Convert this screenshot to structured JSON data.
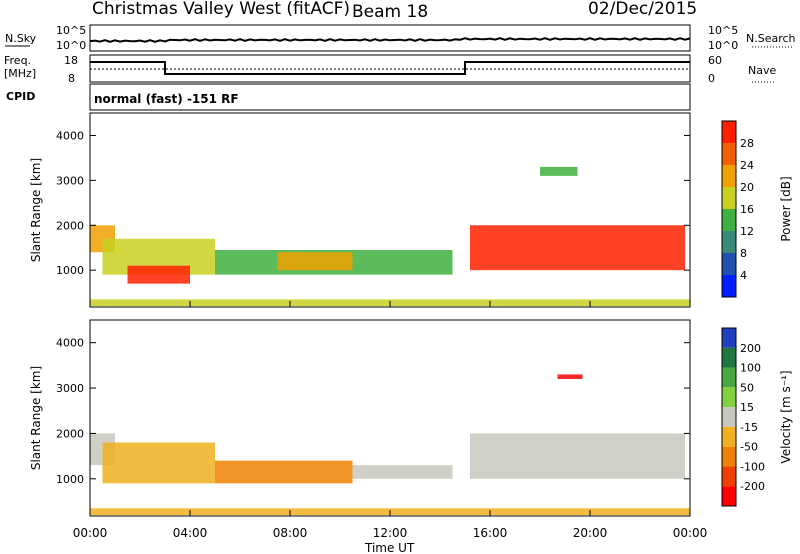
{
  "header": {
    "title": "Christmas Valley West (fitACF)",
    "beam": "Beam 18",
    "date": "02/Dec/2015"
  },
  "aux": {
    "nsky_label": "N.Sky",
    "nsearch_label": "N.Search",
    "noise_tick_top": "10^5",
    "noise_tick_bottom": "10^0",
    "freq_label_line1": "Freq.",
    "freq_label_line2": "[MHz]",
    "freq_ticks": [
      "18",
      "8"
    ],
    "nave_label": "Nave",
    "nave_ticks": [
      "60",
      "0"
    ],
    "cpid_label": "CPID",
    "cpid_text": "normal (fast) -151 RF"
  },
  "colors": {
    "power": [
      "#0020ff",
      "#2050b0",
      "#3a8a7a",
      "#40b040",
      "#c8d020",
      "#f0a000",
      "#f06000",
      "#ff2000"
    ],
    "velocity": [
      "#2040c0",
      "#207840",
      "#48a840",
      "#80d040",
      "#c8c8c0",
      "#f0b020",
      "#f08000",
      "#f04000",
      "#ff0000"
    ]
  },
  "chart_data": [
    {
      "type": "heatmap",
      "name_hint": "power-panel",
      "ylabel": "Slant Range [km]",
      "xlabel": "Time UT",
      "x_ticks": [
        "00:00",
        "04:00",
        "08:00",
        "12:00",
        "16:00",
        "20:00",
        "00:00"
      ],
      "y_ticks": [
        "1000",
        "2000",
        "3000",
        "4000"
      ],
      "xlim_hours": [
        0,
        24
      ],
      "ylim_km": [
        180,
        4500
      ],
      "colorbar": {
        "label": "Power [dB]",
        "ticks": [
          "4",
          "8",
          "12",
          "16",
          "20",
          "24",
          "28"
        ],
        "range": [
          0,
          32
        ]
      },
      "regions": [
        {
          "t0": 0.0,
          "t1": 1.0,
          "r0": 1400,
          "r1": 2000,
          "level": 5
        },
        {
          "t0": 0.5,
          "t1": 5.0,
          "r0": 900,
          "r1": 1700,
          "level": 4
        },
        {
          "t0": 1.5,
          "t1": 4.0,
          "r0": 700,
          "r1": 1100,
          "level": 7
        },
        {
          "t0": 5.0,
          "t1": 14.5,
          "r0": 900,
          "r1": 1450,
          "level": 3
        },
        {
          "t0": 7.5,
          "t1": 10.5,
          "r0": 1000,
          "r1": 1400,
          "level": 5
        },
        {
          "t0": 15.2,
          "t1": 23.8,
          "r0": 1000,
          "r1": 2000,
          "level": 7
        },
        {
          "t0": 18.0,
          "t1": 19.5,
          "r0": 3100,
          "r1": 3300,
          "level": 3
        },
        {
          "t0": 0.0,
          "t1": 24.0,
          "r0": 200,
          "r1": 350,
          "level": 4
        }
      ]
    },
    {
      "type": "heatmap",
      "name_hint": "velocity-panel",
      "ylabel": "Slant Range [km]",
      "xlabel": "Time UT",
      "x_ticks": [
        "00:00",
        "04:00",
        "08:00",
        "12:00",
        "16:00",
        "20:00",
        "00:00"
      ],
      "y_ticks": [
        "1000",
        "2000",
        "3000",
        "4000"
      ],
      "xlim_hours": [
        0,
        24
      ],
      "ylim_km": [
        180,
        4500
      ],
      "colorbar": {
        "label": "Velocity [m s^-1]",
        "ticks": [
          "200",
          "100",
          "50",
          "15",
          "-15",
          "-50",
          "-100",
          "-200"
        ],
        "range": [
          -250,
          250
        ]
      },
      "regions": [
        {
          "t0": 0.0,
          "t1": 1.0,
          "r0": 1300,
          "r1": 2000,
          "level": 4
        },
        {
          "t0": 0.5,
          "t1": 5.0,
          "r0": 900,
          "r1": 1800,
          "level": 5
        },
        {
          "t0": 5.0,
          "t1": 10.5,
          "r0": 900,
          "r1": 1400,
          "level": 6
        },
        {
          "t0": 10.5,
          "t1": 14.5,
          "r0": 1000,
          "r1": 1300,
          "level": 4
        },
        {
          "t0": 15.2,
          "t1": 23.8,
          "r0": 1000,
          "r1": 2000,
          "level": 4
        },
        {
          "t0": 18.7,
          "t1": 19.7,
          "r0": 3200,
          "r1": 3300,
          "level": 8
        },
        {
          "t0": 0.0,
          "t1": 24.0,
          "r0": 200,
          "r1": 350,
          "level": 5
        }
      ]
    }
  ]
}
